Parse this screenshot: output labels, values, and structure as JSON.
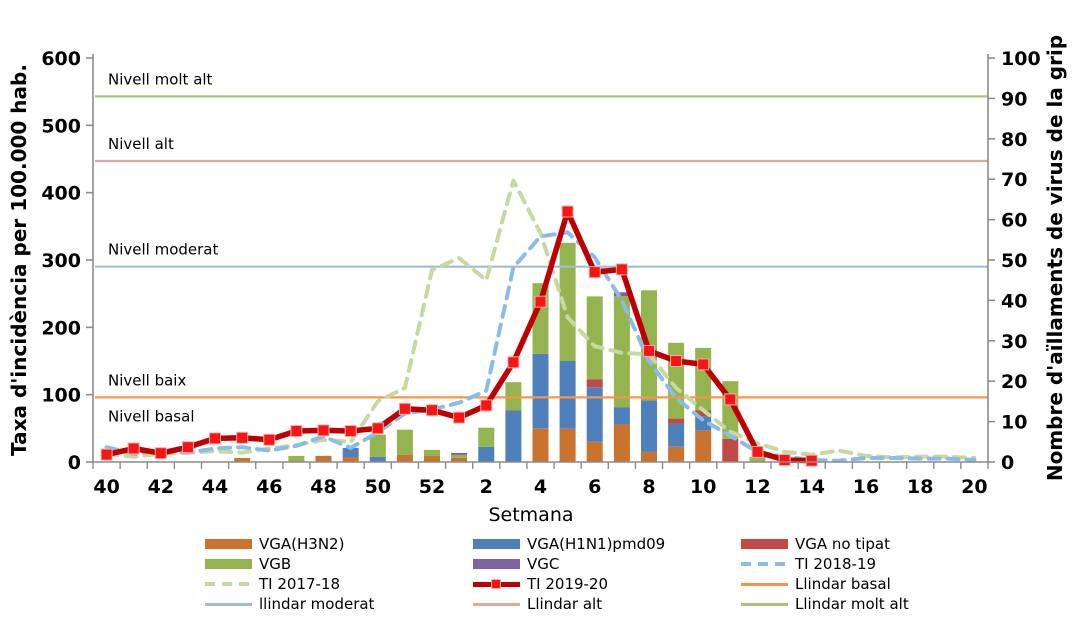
{
  "chart_data": {
    "type": "bar",
    "title": "",
    "x_axis": {
      "label": "Setmana",
      "categories": [
        "40",
        "41",
        "42",
        "43",
        "44",
        "45",
        "46",
        "47",
        "48",
        "49",
        "50",
        "51",
        "52",
        "1",
        "2",
        "3",
        "4",
        "5",
        "6",
        "7",
        "8",
        "9",
        "10",
        "11",
        "12",
        "13",
        "14",
        "15",
        "16",
        "17",
        "18",
        "19",
        "20"
      ],
      "tick_labels_shown": [
        "40",
        "42",
        "44",
        "46",
        "48",
        "50",
        "52",
        "2",
        "4",
        "6",
        "8",
        "10",
        "12",
        "14",
        "16",
        "18",
        "20"
      ]
    },
    "y_left": {
      "label": "Taxa d'incidència per 100.000 hab.",
      "min": 0,
      "max": 600,
      "step": 100
    },
    "y_right": {
      "label": "Nombre d'aïllaments de virus de la grip",
      "min": 0,
      "max": 100,
      "step": 10
    },
    "grid": false,
    "legend_position": "bottom",
    "bar_series": [
      {
        "name": "VGA(H3N2)",
        "axis": "right",
        "color": "#C9732F",
        "values": [
          0,
          0,
          0,
          0,
          0,
          1,
          0,
          0,
          1.5,
          1.25,
          0,
          1.75,
          1.5,
          1,
          0,
          0,
          8.25,
          8.25,
          5,
          9.25,
          2.5,
          3.75,
          7.75,
          0,
          0,
          0,
          0,
          0,
          0,
          0,
          0,
          0,
          0
        ]
      },
      {
        "name": "VGA(H1N1)pmd09",
        "axis": "right",
        "color": "#4E80BC",
        "values": [
          0,
          0,
          0,
          0,
          0,
          0,
          0,
          0,
          0,
          2.25,
          1.25,
          0,
          0,
          0,
          3.75,
          12.75,
          18.5,
          16.75,
          13.5,
          4.25,
          12.75,
          5.75,
          3.5,
          0,
          0,
          0,
          0,
          0,
          0,
          0,
          0,
          0,
          0
        ]
      },
      {
        "name": "VGA no tipat",
        "axis": "right",
        "color": "#BE4B48",
        "values": [
          0,
          0,
          0,
          0,
          0,
          0,
          0,
          0,
          0,
          0,
          0,
          0,
          0,
          0,
          0,
          0,
          0,
          0,
          2,
          0,
          0,
          1.25,
          1.5,
          5.75,
          0,
          0,
          0,
          0,
          0,
          0,
          0,
          0,
          0
        ]
      },
      {
        "name": "VGB",
        "axis": "right",
        "color": "#94B44F",
        "values": [
          0,
          0,
          0,
          0,
          0,
          0,
          0,
          1.5,
          0,
          0,
          5.5,
          6.25,
          1.5,
          0.75,
          4.75,
          7,
          17.5,
          29.25,
          20.5,
          27.5,
          27.25,
          18.75,
          15.5,
          14.25,
          1.25,
          0,
          0,
          0,
          0,
          0,
          0,
          0,
          0
        ]
      },
      {
        "name": "VGC",
        "axis": "right",
        "color": "#8064A2",
        "values": [
          0,
          0,
          0,
          0,
          0,
          0,
          0,
          0,
          0,
          0,
          0,
          0,
          0,
          0.5,
          0,
          0,
          0,
          0,
          0,
          1,
          0,
          0,
          0,
          0,
          0,
          0,
          0,
          0,
          0,
          0,
          0,
          0,
          0
        ]
      }
    ],
    "line_series": [
      {
        "name": "TI 2017-18",
        "axis": "left",
        "style": "dashed",
        "color": "#C6D9A0",
        "values": [
          12,
          8,
          12,
          14,
          16,
          14,
          20,
          25,
          33,
          30,
          90,
          110,
          285,
          303,
          270,
          418,
          340,
          215,
          172,
          162,
          160,
          110,
          77,
          45,
          28,
          15,
          11,
          17,
          9,
          7,
          8,
          8,
          6
        ]
      },
      {
        "name": "TI 2018-19",
        "axis": "left",
        "style": "dashed",
        "color": "#89BDE7",
        "values": [
          22,
          12,
          17,
          14,
          20,
          22,
          17,
          24,
          38,
          21,
          44,
          72,
          78,
          88,
          106,
          289,
          335,
          341,
          304,
          240,
          150,
          95,
          62,
          39,
          15,
          8,
          3,
          2,
          6,
          6,
          5,
          5,
          3
        ]
      },
      {
        "name": "TI 2019-20",
        "axis": "left",
        "style": "solid",
        "marker": "square",
        "color": "#C00000",
        "marker_color": "#FB1414",
        "values": [
          11,
          20,
          13,
          22,
          35,
          36,
          33,
          46,
          47,
          46,
          50,
          79,
          77,
          66,
          84,
          148,
          238,
          372,
          282,
          286,
          165,
          150,
          145,
          93,
          15,
          3,
          2,
          null,
          null,
          null,
          null,
          null,
          null
        ]
      }
    ],
    "thresholds": [
      {
        "name": "Llindar basal",
        "value": 96,
        "color": "#F79646"
      },
      {
        "name": "llindar moderat",
        "value": 290,
        "color": "#A3BAD6"
      },
      {
        "name": "Llindar alt",
        "value": 447,
        "color": "#E0A9A7"
      },
      {
        "name": "Llindar molt alt",
        "value": 543,
        "color": "#A9C47F"
      }
    ],
    "annotations": [
      {
        "text": "Nivell molt alt",
        "value": 543,
        "placement": "above"
      },
      {
        "text": "Nivell alt",
        "value": 447,
        "placement": "above"
      },
      {
        "text": "Nivell moderat",
        "value": 290,
        "placement": "above"
      },
      {
        "text": "Nivell baix",
        "value": 96,
        "placement": "above"
      },
      {
        "text": "Nivell basal",
        "value": 96,
        "placement": "below"
      }
    ]
  },
  "legend": {
    "items": [
      {
        "label": "VGA(H3N2)",
        "swatch": "bar",
        "color": "#C9732F"
      },
      {
        "label": "VGA(H1N1)pmd09",
        "swatch": "bar",
        "color": "#4E80BC"
      },
      {
        "label": "VGA no tipat",
        "swatch": "bar",
        "color": "#BE4B48"
      },
      {
        "label": "VGB",
        "swatch": "bar",
        "color": "#94B44F"
      },
      {
        "label": "VGC",
        "swatch": "bar",
        "color": "#8064A2"
      },
      {
        "label": "TI 2018-19",
        "swatch": "dash",
        "color": "#89BDE7"
      },
      {
        "label": "TI 2017-18",
        "swatch": "dash",
        "color": "#C6D9A0"
      },
      {
        "label": "TI 2019-20",
        "swatch": "line-marker",
        "color": "#C00000",
        "marker_color": "#FB1414"
      },
      {
        "label": "Llindar basal",
        "swatch": "line",
        "color": "#F79646"
      },
      {
        "label": "llindar moderat",
        "swatch": "line",
        "color": "#A3BAD6"
      },
      {
        "label": "Llindar alt",
        "swatch": "line",
        "color": "#E0A9A7"
      },
      {
        "label": "Llindar molt alt",
        "swatch": "line",
        "color": "#A9C47F"
      }
    ]
  }
}
